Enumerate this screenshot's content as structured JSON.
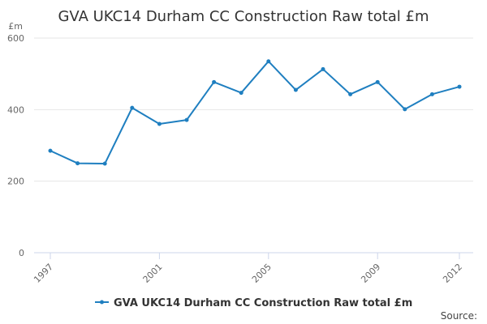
{
  "chart_data": {
    "type": "line",
    "title": "GVA UKC14 Durham CC Construction Raw total £m",
    "y_unit_label": "£m",
    "x": [
      1997,
      1998,
      1999,
      2000,
      2001,
      2002,
      2003,
      2004,
      2005,
      2006,
      2007,
      2008,
      2009,
      2010,
      2011,
      2012
    ],
    "x_tick_labels": [
      "1997",
      "2001",
      "2005",
      "2009",
      "2012"
    ],
    "x_ticks": [
      1997,
      2001,
      2005,
      2009,
      2012
    ],
    "y_ticks": [
      0,
      200,
      400,
      600
    ],
    "ylim": [
      0,
      600
    ],
    "grid": true,
    "legend_position": "bottom",
    "series": [
      {
        "name": "GVA UKC14 Durham CC Construction Raw total £m",
        "color": "#1f7fc0",
        "values": [
          285,
          250,
          249,
          405,
          360,
          371,
          477,
          447,
          535,
          455,
          513,
          443,
          477,
          401,
          443,
          464
        ]
      }
    ]
  },
  "source_label": "Source:"
}
